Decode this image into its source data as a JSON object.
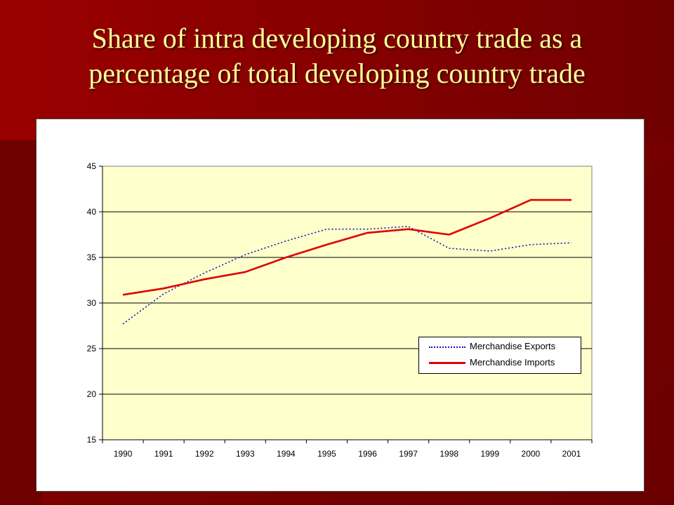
{
  "slide": {
    "title_line1": "Share of intra developing country trade as a",
    "title_line2": "percentage of total developing country trade"
  },
  "colors": {
    "background": "#7a0000",
    "title": "#ffff99",
    "plot_area": "#ffffcc",
    "exports_line": "#1010c0",
    "imports_line": "#e00000"
  },
  "chart_data": {
    "type": "line",
    "title": "",
    "xlabel": "",
    "ylabel": "",
    "categories": [
      "1990",
      "1991",
      "1992",
      "1993",
      "1994",
      "1995",
      "1996",
      "1997",
      "1998",
      "1999",
      "2000",
      "2001"
    ],
    "ylim": [
      15,
      45
    ],
    "yticks": [
      "15",
      "20",
      "25",
      "30",
      "35",
      "40",
      "45"
    ],
    "grid": "horizontal",
    "legend_position": "right",
    "series": [
      {
        "name": "Merchandise Exports",
        "style": "dotted",
        "values": [
          27.7,
          31.0,
          33.3,
          35.3,
          36.8,
          38.1,
          38.1,
          38.4,
          36.0,
          35.7,
          36.4,
          36.6
        ]
      },
      {
        "name": "Merchandise Imports",
        "style": "solid",
        "values": [
          30.9,
          31.6,
          32.6,
          33.4,
          35.0,
          36.4,
          37.7,
          38.1,
          37.5,
          39.3,
          41.3,
          41.3
        ]
      }
    ]
  }
}
